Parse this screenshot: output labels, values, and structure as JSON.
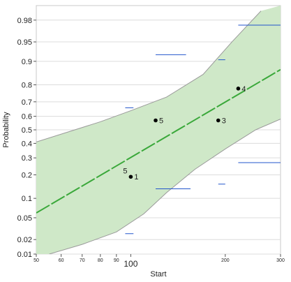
{
  "chart_data": {
    "type": "scatter",
    "xlabel": "Start",
    "ylabel": "Probability",
    "x_scale": "log",
    "y_scale": "normal-probability",
    "xlim": [
      50,
      300
    ],
    "ylim": [
      0.01,
      0.99
    ],
    "x_ticks": [
      {
        "value": 50,
        "label": "50",
        "major": false
      },
      {
        "value": 60,
        "label": "60",
        "major": false
      },
      {
        "value": 70,
        "label": "70",
        "major": false
      },
      {
        "value": 80,
        "label": "80",
        "major": false
      },
      {
        "value": 90,
        "label": "90",
        "major": false
      },
      {
        "value": 100,
        "label": "100",
        "major": true
      },
      {
        "value": 200,
        "label": "200",
        "major": false
      },
      {
        "value": 300,
        "label": "300",
        "major": false
      }
    ],
    "y_ticks": [
      0.01,
      0.02,
      0.05,
      0.1,
      0.2,
      0.3,
      0.4,
      0.5,
      0.6,
      0.7,
      0.8,
      0.9,
      0.95,
      0.98
    ],
    "y_tick_labels": [
      "0.01",
      "0.02",
      "0.05",
      "0.1",
      "0.2",
      "0.3",
      "0.4",
      "0.5",
      "0.6",
      "0.7",
      "0.8",
      "0.9",
      "0.95",
      "0.98"
    ],
    "grid": true,
    "points": [
      {
        "x": 100,
        "y": 0.19,
        "label": "1"
      },
      {
        "x": 120,
        "y": 0.57,
        "label": "5"
      },
      {
        "x": 190,
        "y": 0.57,
        "label": "3"
      },
      {
        "x": 220,
        "y": 0.78,
        "label": "4"
      }
    ],
    "extra_labels": [
      {
        "x": 96,
        "y": 0.2,
        "label": "5"
      }
    ],
    "fit_line": [
      {
        "x": 50,
        "y": 0.06
      },
      {
        "x": 300,
        "y": 0.87
      }
    ],
    "confidence_band": {
      "upper": [
        {
          "x": 50,
          "y": 0.41
        },
        {
          "x": 80,
          "y": 0.56
        },
        {
          "x": 100,
          "y": 0.64
        },
        {
          "x": 130,
          "y": 0.73
        },
        {
          "x": 170,
          "y": 0.85
        },
        {
          "x": 210,
          "y": 0.95
        },
        {
          "x": 260,
          "y": 0.987
        }
      ],
      "lower": [
        {
          "x": 55,
          "y": 0.01
        },
        {
          "x": 70,
          "y": 0.016
        },
        {
          "x": 90,
          "y": 0.028
        },
        {
          "x": 110,
          "y": 0.058
        },
        {
          "x": 130,
          "y": 0.12
        },
        {
          "x": 160,
          "y": 0.23
        },
        {
          "x": 200,
          "y": 0.36
        },
        {
          "x": 250,
          "y": 0.5
        },
        {
          "x": 300,
          "y": 0.58
        }
      ]
    },
    "interval_segments": [
      {
        "x1": 120,
        "x2": 150,
        "y": 0.92
      },
      {
        "x1": 190,
        "x2": 200,
        "y": 0.905
      },
      {
        "x1": 220,
        "x2": 300,
        "y": 0.975
      },
      {
        "x1": 96,
        "x2": 102,
        "y": 0.66
      },
      {
        "x1": 120,
        "x2": 155,
        "y": 0.135
      },
      {
        "x1": 190,
        "x2": 200,
        "y": 0.155
      },
      {
        "x1": 220,
        "x2": 300,
        "y": 0.27
      },
      {
        "x1": 96,
        "x2": 102,
        "y": 0.026
      }
    ],
    "colors": {
      "fit_line": "#3aa83a",
      "band_fill": "#cfe8c8",
      "band_edge": "#9a9a9a",
      "interval": "#2255cc",
      "point": "#000000",
      "grid": "#dcdcdc"
    }
  }
}
